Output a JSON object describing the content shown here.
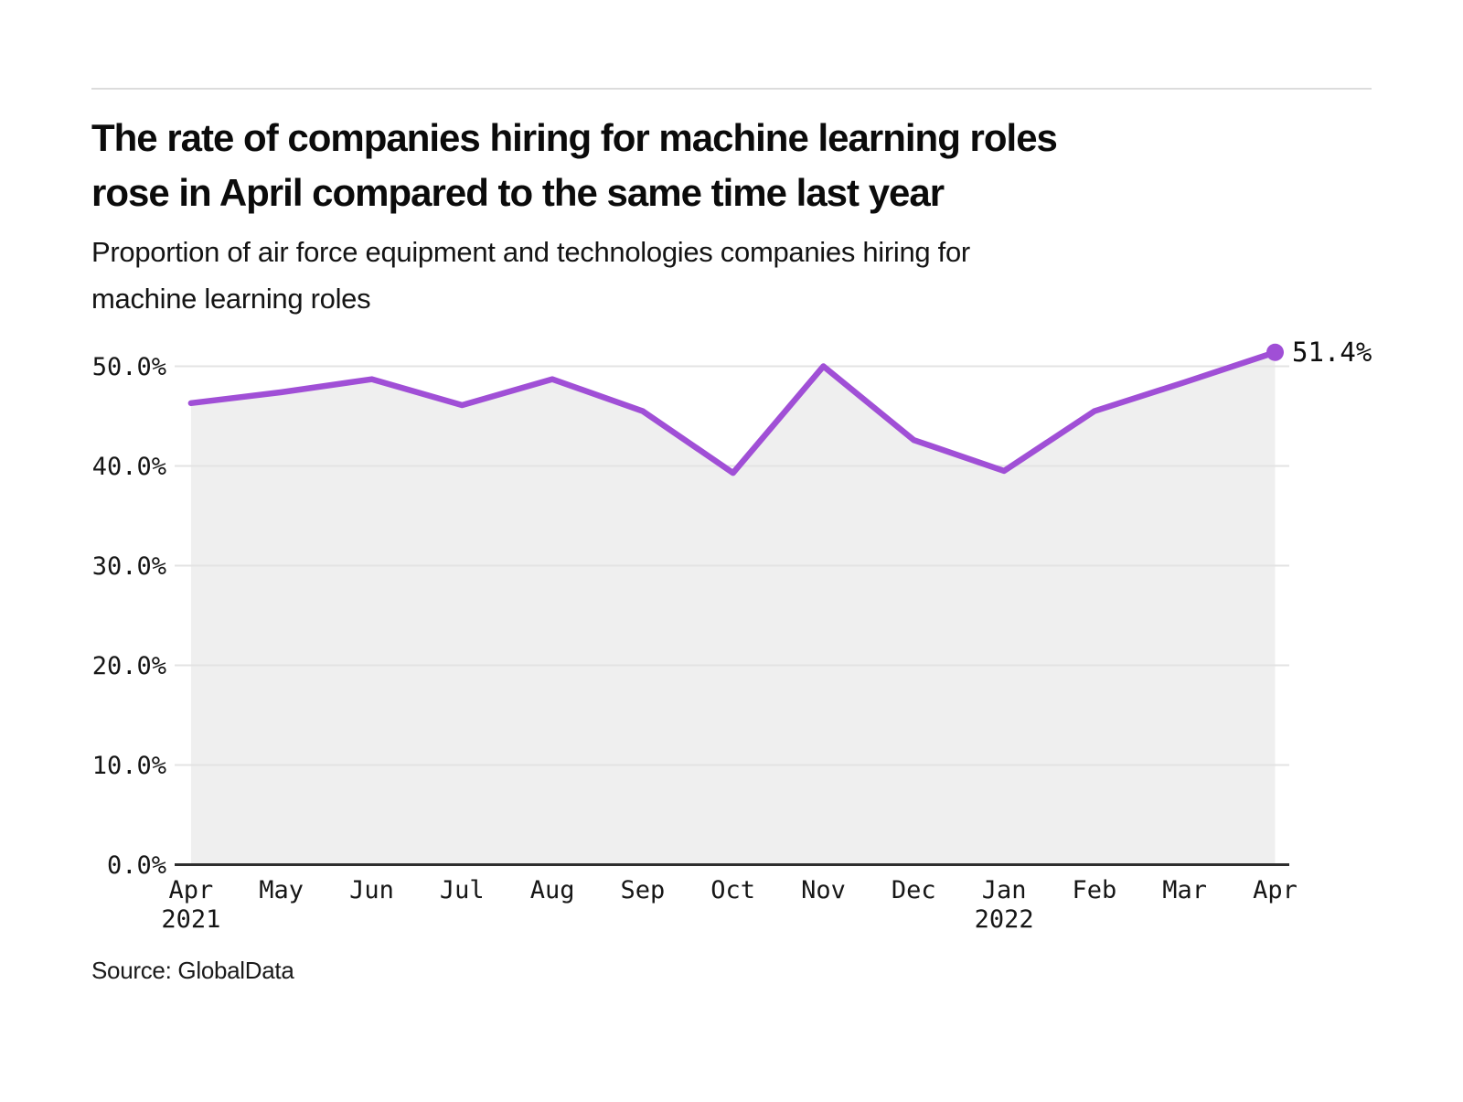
{
  "header": {
    "title_lines": [
      "The rate of companies hiring for machine learning roles",
      "rose in April compared to the same time last year"
    ],
    "subtitle_lines": [
      "Proportion of air force equipment and technologies companies hiring for",
      "machine learning roles"
    ]
  },
  "chart_data": {
    "type": "line",
    "title": "The rate of companies hiring for machine learning roles rose in April compared to the same time last year",
    "subtitle": "Proportion of air force equipment and technologies companies hiring for machine learning roles",
    "categories": [
      "Apr",
      "May",
      "Jun",
      "Jul",
      "Aug",
      "Sep",
      "Oct",
      "Nov",
      "Dec",
      "Jan",
      "Feb",
      "Mar",
      "Apr"
    ],
    "year_marks": [
      {
        "index": 0,
        "label": "2021"
      },
      {
        "index": 9,
        "label": "2022"
      }
    ],
    "values": [
      46.3,
      47.4,
      48.7,
      46.1,
      48.7,
      45.5,
      39.3,
      50.0,
      42.6,
      39.5,
      45.5,
      48.4,
      51.4
    ],
    "ylim": [
      0,
      50
    ],
    "ytick_labels": [
      "0.0%",
      "10.0%",
      "20.0%",
      "30.0%",
      "40.0%",
      "50.0%"
    ],
    "end_label": "51.4%",
    "grid": true,
    "legend": "none",
    "colors": {
      "line": "#a04fd6",
      "area": "#efefef",
      "grid": "#e3e3e3",
      "axis": "#2e2e2e",
      "text": "#161616"
    }
  },
  "footer": {
    "source": "Source: GlobalData"
  }
}
